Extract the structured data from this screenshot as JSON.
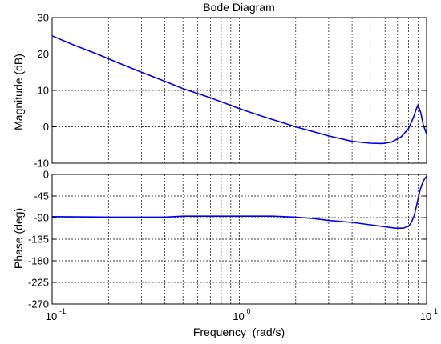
{
  "chart_data": {
    "type": "line",
    "title": "Bode Diagram",
    "xlabel": "Frequency  (rad/s)",
    "x_scale": "log",
    "xlim": [
      0.1,
      10
    ],
    "x_ticks": [
      {
        "base": "10",
        "exp": "-1"
      },
      {
        "base": "10",
        "exp": "0"
      },
      {
        "base": "10",
        "exp": "1"
      }
    ],
    "grid": true,
    "line_color": "#0000ee",
    "subplots": [
      {
        "name": "magnitude",
        "ylabel": "Magnitude (dB)",
        "ylim": [
          -10,
          30
        ],
        "yticks": [
          "30",
          "20",
          "10",
          "0",
          "-10"
        ],
        "series": [
          {
            "x": [
              0.1,
              0.13,
              0.17,
              0.22,
              0.3,
              0.4,
              0.5,
              0.7,
              1.0,
              1.3,
              2.0,
              3.0,
              4.0,
              5.0,
              5.8,
              6.5,
              7.3,
              8.0,
              8.5,
              8.8,
              9.0,
              9.3,
              9.6,
              10.0
            ],
            "y": [
              25.0,
              22.5,
              20.2,
              17.8,
              15.0,
              12.5,
              10.5,
              8.0,
              5.0,
              3.0,
              0.0,
              -2.5,
              -4.0,
              -4.5,
              -4.6,
              -4.2,
              -2.8,
              -0.5,
              2.5,
              4.8,
              6.0,
              4.0,
              0.5,
              -2.0
            ]
          }
        ]
      },
      {
        "name": "phase",
        "ylabel": "Phase (deg)",
        "ylim": [
          -270,
          0
        ],
        "yticks": [
          "0",
          "-45",
          "-90",
          "-135",
          "-180",
          "-225",
          "-270"
        ],
        "series": [
          {
            "x": [
              0.1,
              0.2,
              0.3,
              0.4,
              0.5,
              0.7,
              1.0,
              1.5,
              2.0,
              2.5,
              3.0,
              4.0,
              5.0,
              6.0,
              6.8,
              7.5,
              8.0,
              8.3,
              8.6,
              8.9,
              9.2,
              9.5,
              9.8,
              10.0
            ],
            "y": [
              -88,
              -89,
              -89,
              -89,
              -87,
              -87,
              -87,
              -87,
              -89,
              -92,
              -96,
              -100,
              -105,
              -109,
              -112,
              -112,
              -108,
              -100,
              -85,
              -60,
              -35,
              -18,
              -8,
              -4
            ]
          }
        ]
      }
    ]
  }
}
